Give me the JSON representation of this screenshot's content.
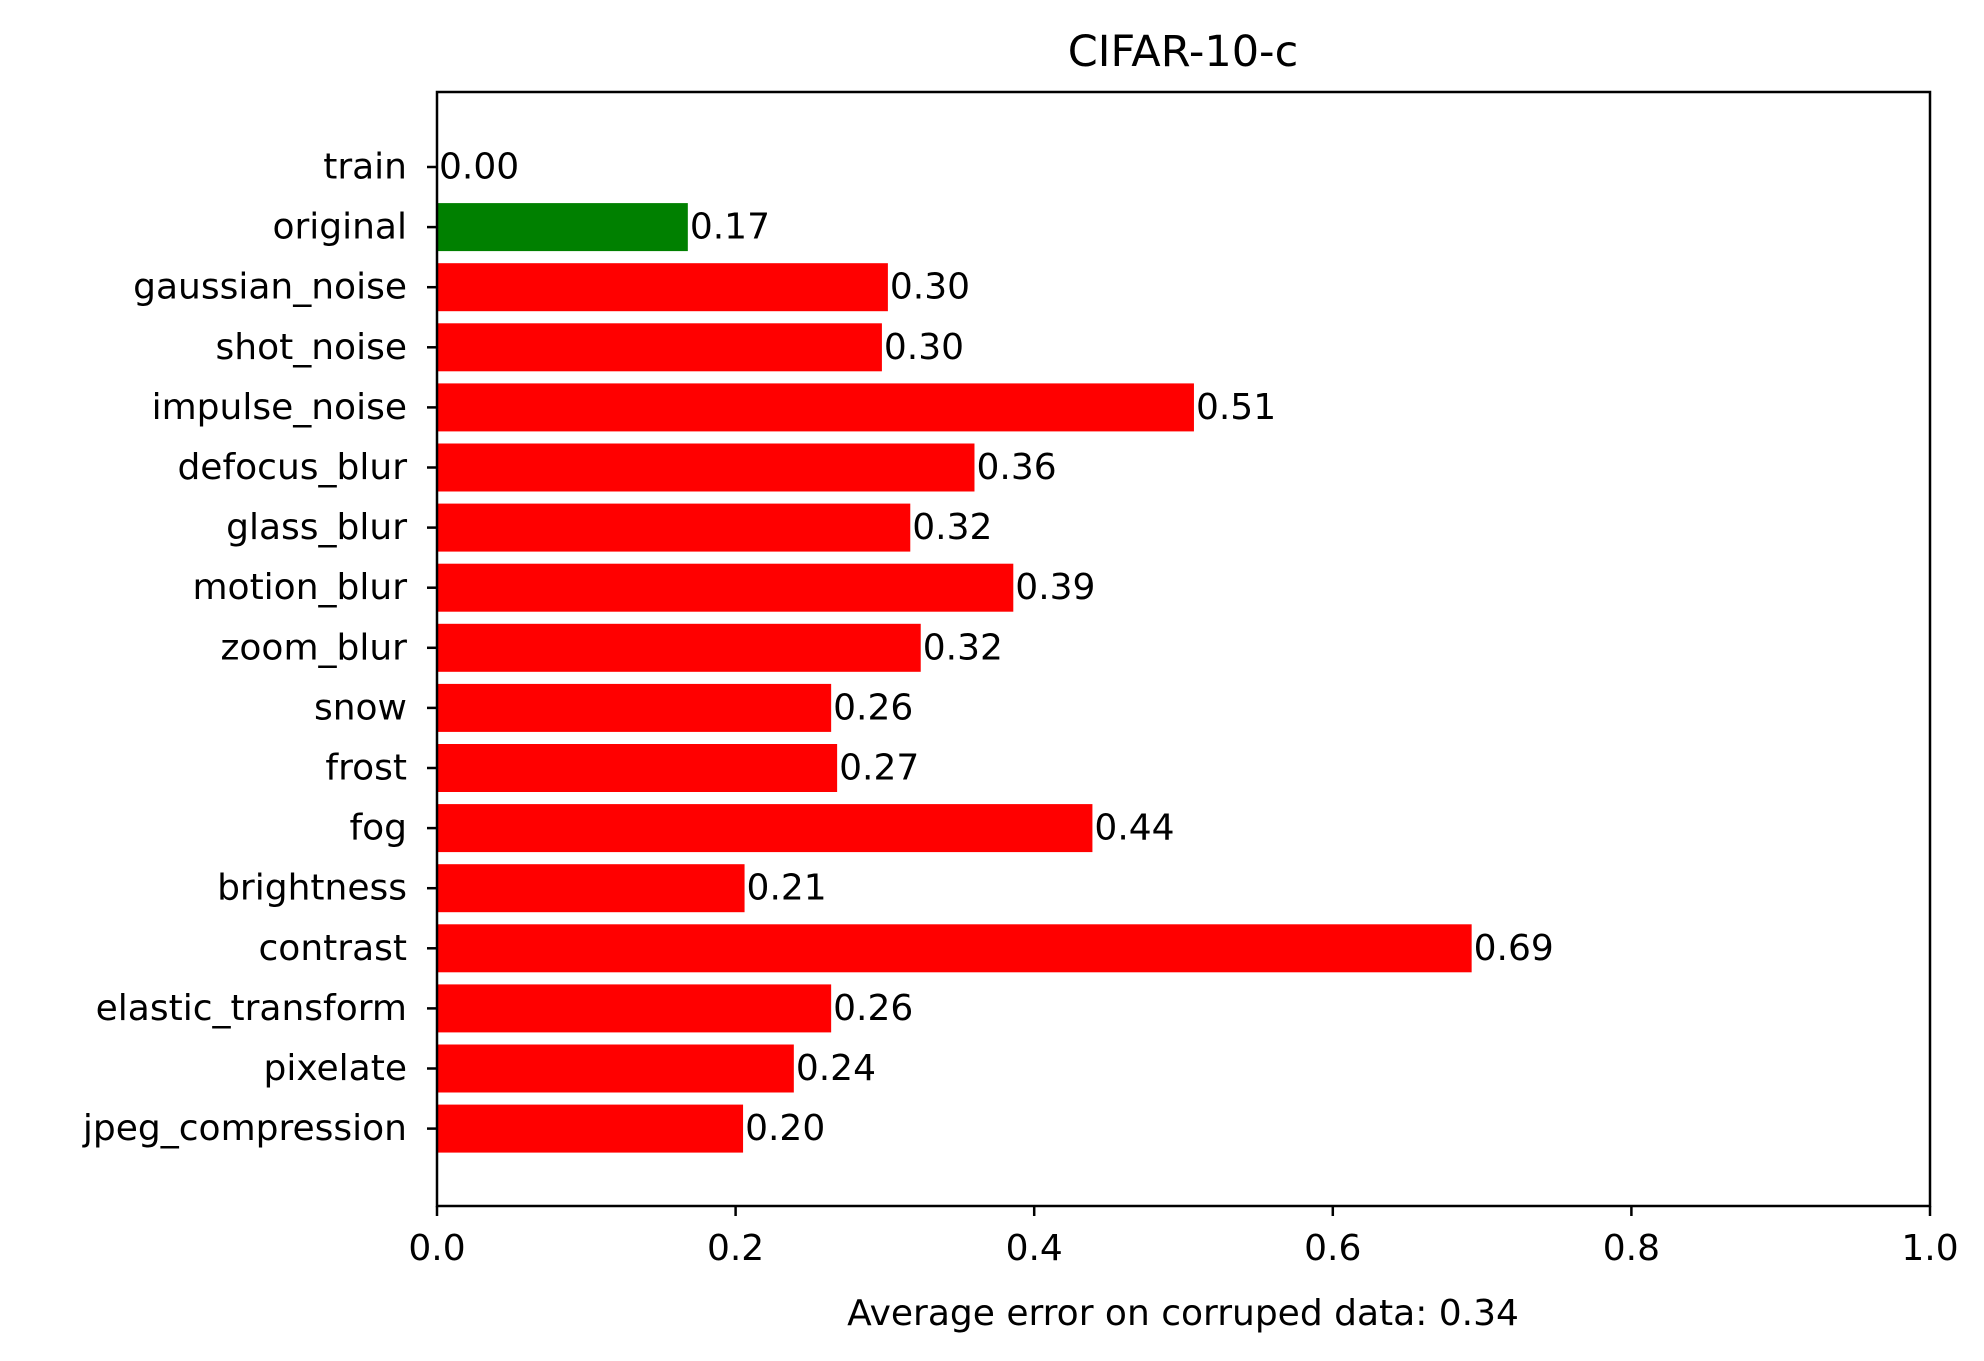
{
  "chart_data": {
    "type": "bar",
    "orientation": "horizontal",
    "title": "CIFAR-10-c",
    "xlabel": "Average error on corruped data: 0.34",
    "ylabel": "",
    "xlim": [
      0.0,
      1.0
    ],
    "xticks": [
      "0.0",
      "0.2",
      "0.4",
      "0.6",
      "0.8",
      "1.0"
    ],
    "grid": false,
    "categories": [
      "train",
      "original",
      "gaussian_noise",
      "shot_noise",
      "impulse_noise",
      "defocus_blur",
      "glass_blur",
      "motion_blur",
      "zoom_blur",
      "snow",
      "frost",
      "fog",
      "brightness",
      "contrast",
      "elastic_transform",
      "pixelate",
      "jpeg_compression"
    ],
    "values": [
      0.0,
      0.168,
      0.302,
      0.298,
      0.507,
      0.36,
      0.317,
      0.386,
      0.324,
      0.264,
      0.268,
      0.439,
      0.206,
      0.693,
      0.264,
      0.239,
      0.205
    ],
    "value_labels": [
      "0.00",
      "0.17",
      "0.30",
      "0.30",
      "0.51",
      "0.36",
      "0.32",
      "0.39",
      "0.32",
      "0.26",
      "0.27",
      "0.44",
      "0.21",
      "0.69",
      "0.26",
      "0.24",
      "0.20"
    ],
    "colors": [
      "#ff0000",
      "#008000",
      "#ff0000",
      "#ff0000",
      "#ff0000",
      "#ff0000",
      "#ff0000",
      "#ff0000",
      "#ff0000",
      "#ff0000",
      "#ff0000",
      "#ff0000",
      "#ff0000",
      "#ff0000",
      "#ff0000",
      "#ff0000",
      "#ff0000"
    ]
  }
}
